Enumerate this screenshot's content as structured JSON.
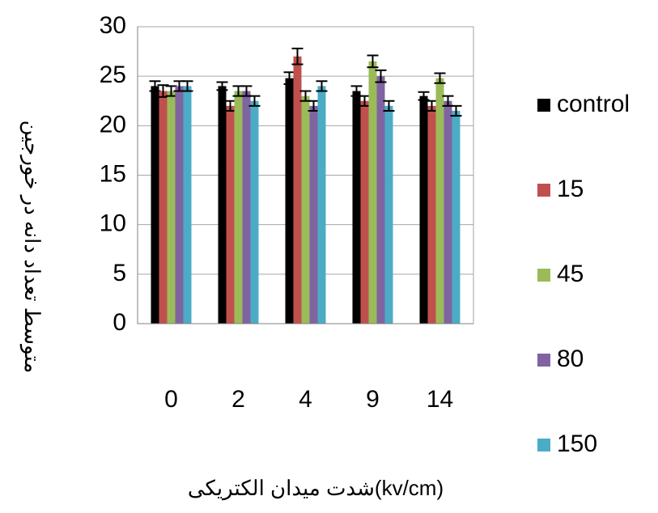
{
  "chart_data": {
    "type": "bar",
    "y_label": "متوسط تعداد دانه در خورجین",
    "x_label": "شدت میدان الکتریکی(kv/cm)",
    "categories": [
      "0",
      "2",
      "4",
      "9",
      "14"
    ],
    "series": [
      {
        "name": "control",
        "color": "#000000",
        "values": [
          24,
          24,
          24.8,
          23.5,
          23
        ],
        "errors": [
          0.5,
          0.4,
          0.6,
          0.5,
          0.4
        ]
      },
      {
        "name": "15",
        "color": "#c0504d",
        "values": [
          23.5,
          22,
          27,
          22.5,
          22
        ],
        "errors": [
          0.6,
          0.5,
          0.8,
          0.5,
          0.5
        ]
      },
      {
        "name": "45",
        "color": "#9bbb59",
        "values": [
          23.5,
          23.5,
          23,
          26.5,
          24.8
        ],
        "errors": [
          0.5,
          0.5,
          0.5,
          0.6,
          0.5
        ]
      },
      {
        "name": "80",
        "color": "#8064a2",
        "values": [
          24,
          23.5,
          22,
          25,
          22.5
        ],
        "errors": [
          0.5,
          0.5,
          0.5,
          0.6,
          0.5
        ]
      },
      {
        "name": "150",
        "color": "#4bacc6",
        "values": [
          24,
          22.5,
          24,
          22,
          21.5
        ],
        "errors": [
          0.5,
          0.5,
          0.5,
          0.5,
          0.5
        ]
      }
    ],
    "ylim": [
      0,
      30
    ],
    "yticks": [
      0,
      5,
      10,
      15,
      20,
      25,
      30
    ],
    "grid": true,
    "legend": "right"
  }
}
